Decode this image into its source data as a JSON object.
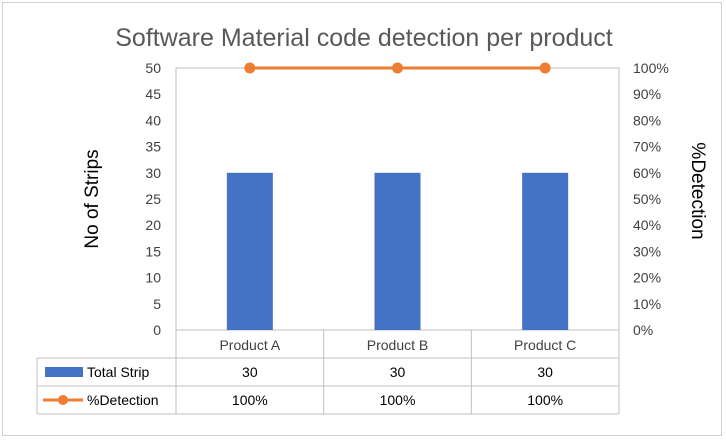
{
  "chart_data": {
    "type": "bar",
    "title": "Software Material code detection per product",
    "categories": [
      "Product A",
      "Product B",
      "Product C"
    ],
    "ylabel": "No of Strips",
    "y2label": "%Detection",
    "ylim": [
      0,
      50
    ],
    "y2lim": [
      0,
      100
    ],
    "y_ticks": [
      "0",
      "5",
      "10",
      "15",
      "20",
      "25",
      "30",
      "35",
      "40",
      "45",
      "50"
    ],
    "y2_ticks": [
      "0%",
      "10%",
      "20%",
      "30%",
      "40%",
      "50%",
      "60%",
      "70%",
      "80%",
      "90%",
      "100%"
    ],
    "grid": false,
    "legend_placement": "data-table",
    "series": [
      {
        "name": "Total Strip",
        "type": "bar",
        "axis": "primary",
        "values": [
          30,
          30,
          30
        ],
        "labels": [
          "30",
          "30",
          "30"
        ],
        "color": "#4472C4"
      },
      {
        "name": "%Detection",
        "type": "line",
        "axis": "secondary",
        "values": [
          100,
          100,
          100
        ],
        "labels": [
          "100%",
          "100%",
          "100%"
        ],
        "color": "#ED7D31"
      }
    ]
  }
}
